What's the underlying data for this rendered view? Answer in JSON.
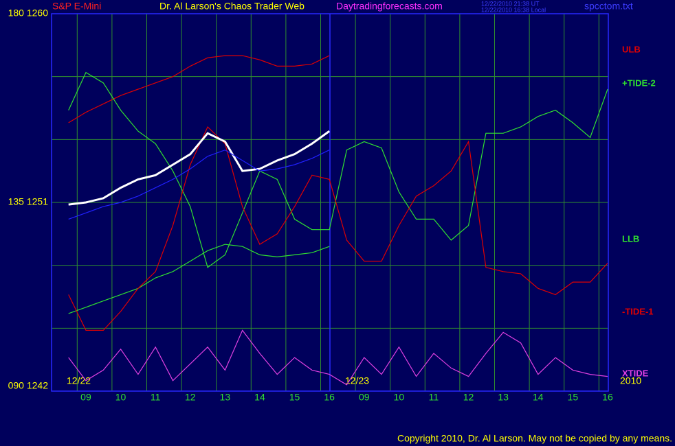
{
  "chart_data": {
    "type": "line",
    "instrument": "S&P E-Mini",
    "title": "Dr. Al Larson's Chaos Trader Web",
    "site": "Daytradingforecasts.com",
    "timestamps": [
      "12/22/2010 21:38 UT",
      "12/22/2010 16:38 Local"
    ],
    "file": "spcctom.txt",
    "dates": [
      "12/22",
      "12/23"
    ],
    "year": "2010",
    "copyright": "Copyright 2010, Dr. Al Larson.  May not be copied by any means.",
    "categories": [
      null,
      "09",
      null,
      "10",
      null,
      "11",
      null,
      "12",
      null,
      "13",
      null,
      "14",
      null,
      "15",
      null,
      "16",
      null,
      "09",
      null,
      "10",
      null,
      "11",
      null,
      "12",
      null,
      "13",
      null,
      "14",
      null,
      "15",
      null,
      "16"
    ],
    "ylim": [
      1242,
      1260
    ],
    "yticks": [
      {
        "value": 1260,
        "label": "180 1260"
      },
      {
        "value": 1251,
        "label": "135 1251"
      },
      {
        "value": 1242,
        "label": "090 1242"
      }
    ],
    "ygrid": [
      1257,
      1254,
      1251,
      1248,
      1245
    ],
    "grid": true,
    "series": [
      {
        "name": "ULB",
        "color": "#e00000",
        "values": [
          1254.8,
          1255.3,
          1255.7,
          1256.1,
          1256.4,
          1256.7,
          1257.0,
          1257.5,
          1257.9,
          1258.0,
          1258.0,
          1257.8,
          1257.5,
          1257.5,
          1257.6,
          1258.0,
          null,
          null,
          null,
          null,
          null,
          null,
          null,
          null,
          null,
          null,
          null,
          null,
          null,
          null,
          null,
          null
        ]
      },
      {
        "name": "+TIDE-2",
        "color": "#30e030",
        "values": [
          1255.4,
          1257.2,
          1256.7,
          1255.4,
          1254.4,
          1253.8,
          1252.5,
          1250.8,
          1247.9,
          1248.5,
          1250.5,
          1252.5,
          1252.1,
          1250.2,
          1249.7,
          1249.7,
          1253.5,
          1253.9,
          1253.6,
          1251.5,
          1250.2,
          1250.2,
          1249.2,
          1249.9,
          1254.3,
          1254.3,
          1254.6,
          1255.1,
          1255.4,
          1254.8,
          1254.1,
          1256.4
        ]
      },
      {
        "name": "LLB",
        "color": "#30e030",
        "values": [
          1245.7,
          1246.0,
          1246.3,
          1246.6,
          1246.9,
          1247.4,
          1247.7,
          1248.2,
          1248.7,
          1249.0,
          1248.9,
          1248.5,
          1248.4,
          1248.5,
          1248.6,
          1248.9,
          null,
          null,
          null,
          null,
          null,
          null,
          null,
          null,
          null,
          null,
          null,
          null,
          null,
          null,
          null,
          null
        ]
      },
      {
        "name": "-TIDE-1",
        "color": "#e00000",
        "values": [
          1246.6,
          1244.9,
          1244.9,
          1245.8,
          1246.9,
          1247.7,
          1249.9,
          1252.8,
          1254.6,
          1253.8,
          1250.8,
          1249.0,
          1249.5,
          1250.8,
          1252.3,
          1252.1,
          1249.2,
          1248.2,
          1248.2,
          1249.9,
          1251.3,
          1251.8,
          1252.5,
          1253.9,
          1247.9,
          1247.7,
          1247.6,
          1246.9,
          1246.6,
          1247.2,
          1247.2,
          1248.1
        ]
      },
      {
        "name": "XTIDE",
        "color": "#e040e0",
        "values": [
          1243.6,
          1242.5,
          1243.0,
          1244.0,
          1242.8,
          1244.1,
          1242.5,
          1243.3,
          1244.1,
          1243.0,
          1244.9,
          1243.8,
          1242.8,
          1243.6,
          1243.0,
          1242.8,
          1242.3,
          1243.6,
          1242.8,
          1244.1,
          1242.7,
          1243.8,
          1243.1,
          1242.7,
          1243.8,
          1244.8,
          1244.3,
          1242.8,
          1243.6,
          1243.0,
          1242.8,
          1242.7
        ]
      },
      {
        "color": "#ffffff",
        "values": [
          1250.9,
          1251.0,
          1251.2,
          1251.7,
          1252.1,
          1252.3,
          1252.8,
          1253.3,
          1254.3,
          1253.9,
          1252.5,
          1252.6,
          1253.0,
          1253.3,
          1253.8,
          1254.4,
          null,
          null,
          null,
          null,
          null,
          null,
          null,
          null,
          null,
          null,
          null,
          null,
          null,
          null,
          null,
          null
        ]
      },
      {
        "color": "#2020ff",
        "values": [
          1250.2,
          1250.5,
          1250.8,
          1251.0,
          1251.3,
          1251.7,
          1252.1,
          1252.6,
          1253.2,
          1253.5,
          1253.0,
          1252.5,
          1252.6,
          1252.8,
          1253.1,
          1253.5,
          null,
          null,
          null,
          null,
          null,
          null,
          null,
          null,
          null,
          null,
          null,
          null,
          null,
          null,
          null,
          null
        ]
      }
    ]
  }
}
